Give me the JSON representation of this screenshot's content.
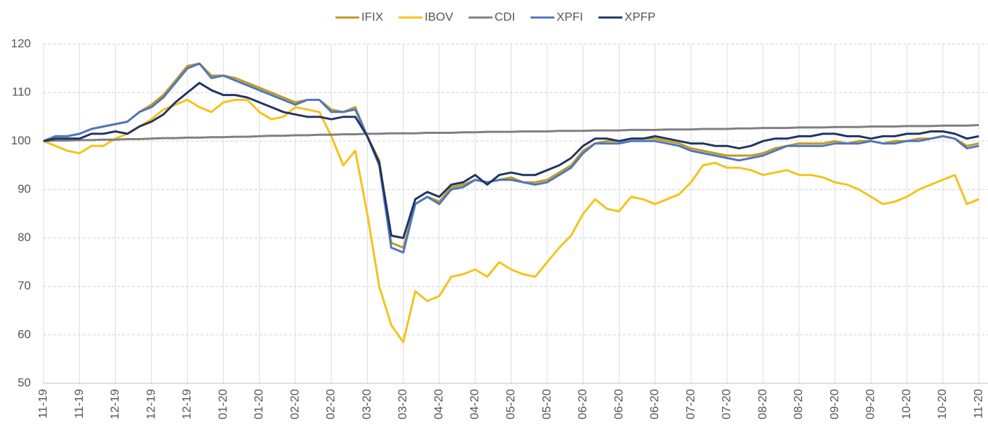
{
  "chart_data": {
    "type": "line",
    "categories": [
      "11-19",
      null,
      null,
      "11-19",
      null,
      null,
      "12-19",
      null,
      null,
      "12-19",
      null,
      null,
      "12-19",
      null,
      null,
      "01-20",
      null,
      null,
      "01-20",
      null,
      null,
      "02-20",
      null,
      null,
      "02-20",
      null,
      null,
      "03-20",
      null,
      null,
      "03-20",
      null,
      null,
      "04-20",
      null,
      null,
      "04-20",
      null,
      null,
      "05-20",
      null,
      null,
      "05-20",
      null,
      null,
      "06-20",
      null,
      null,
      "06-20",
      null,
      null,
      "06-20",
      null,
      null,
      "07-20",
      null,
      null,
      "07-20",
      null,
      null,
      "08-20",
      null,
      null,
      "08-20",
      null,
      null,
      "09-20",
      null,
      null,
      "09-20",
      null,
      null,
      "10-20",
      null,
      null,
      "10-20",
      null,
      null,
      "11-20"
    ],
    "series": [
      {
        "name": "IFIX",
        "color": "#bf9a20",
        "values": [
          100,
          101,
          101,
          101.5,
          102.5,
          103,
          103.5,
          104,
          106,
          107.5,
          109.5,
          112.5,
          115.5,
          116,
          113.5,
          113.5,
          113,
          112,
          111,
          110,
          109,
          108,
          108.5,
          108.5,
          106.5,
          106,
          107,
          101,
          96,
          79,
          78,
          87,
          88.5,
          87.5,
          90.5,
          91,
          92,
          91.5,
          92,
          92.5,
          91.5,
          91.5,
          92,
          93.5,
          95,
          98,
          99.5,
          100,
          100,
          100.5,
          100.5,
          100.5,
          100,
          99.5,
          98.5,
          98,
          97.5,
          97,
          97,
          97,
          97.5,
          98.5,
          99,
          99.5,
          99.5,
          99.5,
          100,
          99.5,
          100,
          100,
          99.5,
          100,
          100,
          100.5,
          100.5,
          101,
          100.5,
          99,
          99.5
        ]
      },
      {
        "name": "IBOV",
        "color": "#f5c21b",
        "values": [
          100,
          99,
          98,
          97.5,
          99,
          99,
          100.5,
          101.5,
          103,
          104.5,
          106.5,
          107.5,
          108.5,
          107,
          106,
          108,
          108.5,
          108.5,
          106,
          104.5,
          105,
          107,
          106.5,
          106,
          101,
          95,
          98,
          85,
          70,
          62,
          58.5,
          69,
          67,
          68,
          72,
          72.5,
          73.5,
          72,
          75,
          73.5,
          72.5,
          72,
          75,
          78,
          80.5,
          85,
          88,
          86,
          85.5,
          88.5,
          88,
          87,
          88,
          89,
          91.5,
          95,
          95.5,
          94.5,
          94.5,
          94,
          93,
          93.5,
          94,
          93,
          93,
          92.5,
          91.5,
          91,
          90,
          88.5,
          87,
          87.5,
          88.5,
          90,
          91,
          92,
          93,
          87,
          88
        ]
      },
      {
        "name": "CDI",
        "color": "#7f7f7f",
        "values": [
          100.0,
          100.1,
          100.1,
          100.2,
          100.2,
          100.3,
          100.3,
          100.4,
          100.4,
          100.5,
          100.6,
          100.6,
          100.7,
          100.7,
          100.8,
          100.8,
          100.9,
          100.9,
          101.0,
          101.1,
          101.1,
          101.2,
          101.2,
          101.3,
          101.3,
          101.4,
          101.4,
          101.5,
          101.5,
          101.6,
          101.6,
          101.6,
          101.7,
          101.7,
          101.7,
          101.8,
          101.8,
          101.9,
          101.9,
          101.9,
          102.0,
          102.0,
          102.0,
          102.1,
          102.1,
          102.1,
          102.2,
          102.2,
          102.2,
          102.3,
          102.3,
          102.3,
          102.4,
          102.4,
          102.4,
          102.5,
          102.5,
          102.5,
          102.6,
          102.6,
          102.7,
          102.7,
          102.7,
          102.8,
          102.8,
          102.8,
          102.9,
          102.9,
          102.9,
          103.0,
          103.0,
          103.0,
          103.1,
          103.1,
          103.1,
          103.2,
          103.2,
          103.2,
          103.3
        ]
      },
      {
        "name": "XPFI",
        "color": "#4f76be",
        "values": [
          100,
          101,
          101,
          101.5,
          102.5,
          103,
          103.5,
          104,
          106,
          107,
          109,
          112,
          115,
          116,
          113,
          113.5,
          112.5,
          111.5,
          110.5,
          109.5,
          108.5,
          107.5,
          108.5,
          108.5,
          106,
          106,
          106.5,
          101,
          95,
          78,
          77,
          87,
          88.5,
          87,
          90,
          90.5,
          92,
          91.5,
          92,
          92,
          91.5,
          91,
          91.5,
          93,
          94.5,
          97.5,
          99.5,
          99.5,
          99.5,
          100,
          100,
          100,
          99.5,
          99,
          98,
          97.5,
          97,
          96.5,
          96,
          96.5,
          97,
          98,
          99,
          99,
          99,
          99,
          99.5,
          99.5,
          99.5,
          100,
          99.5,
          99.5,
          100,
          100,
          100.5,
          101,
          100.5,
          98.5,
          99
        ]
      },
      {
        "name": "XPFP",
        "color": "#1f3460",
        "values": [
          100,
          100.5,
          100.5,
          100.5,
          101.5,
          101.5,
          102,
          101.5,
          103,
          104,
          105.5,
          108,
          110,
          112,
          110.5,
          109.5,
          109.5,
          109,
          108,
          107,
          106,
          105.5,
          105,
          105,
          104.5,
          105,
          105,
          101,
          95.5,
          80.5,
          80,
          88,
          89.5,
          88.5,
          91,
          91.5,
          93,
          91,
          93,
          93.5,
          93,
          93,
          94,
          95,
          96.5,
          99,
          100.5,
          100.5,
          100,
          100.5,
          100.5,
          101,
          100.5,
          100,
          99.5,
          99.5,
          99,
          99,
          98.5,
          99,
          100,
          100.5,
          100.5,
          101,
          101,
          101.5,
          101.5,
          101,
          101,
          100.5,
          101,
          101,
          101.5,
          101.5,
          102,
          102,
          101.5,
          100.5,
          101
        ]
      }
    ],
    "ylim": [
      50,
      120
    ],
    "yticks": [
      50,
      60,
      70,
      80,
      90,
      100,
      110,
      120
    ],
    "grid": true,
    "legend": "top"
  }
}
